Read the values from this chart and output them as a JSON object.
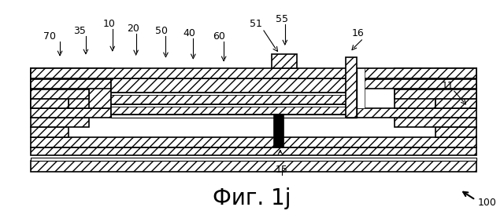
{
  "title": "Фиг. 1j",
  "title_fontsize": 20,
  "background_color": "#ffffff",
  "hatch_pattern": "///",
  "lw": 1.2,
  "ec": "#000000",
  "fc": "#ffffff"
}
